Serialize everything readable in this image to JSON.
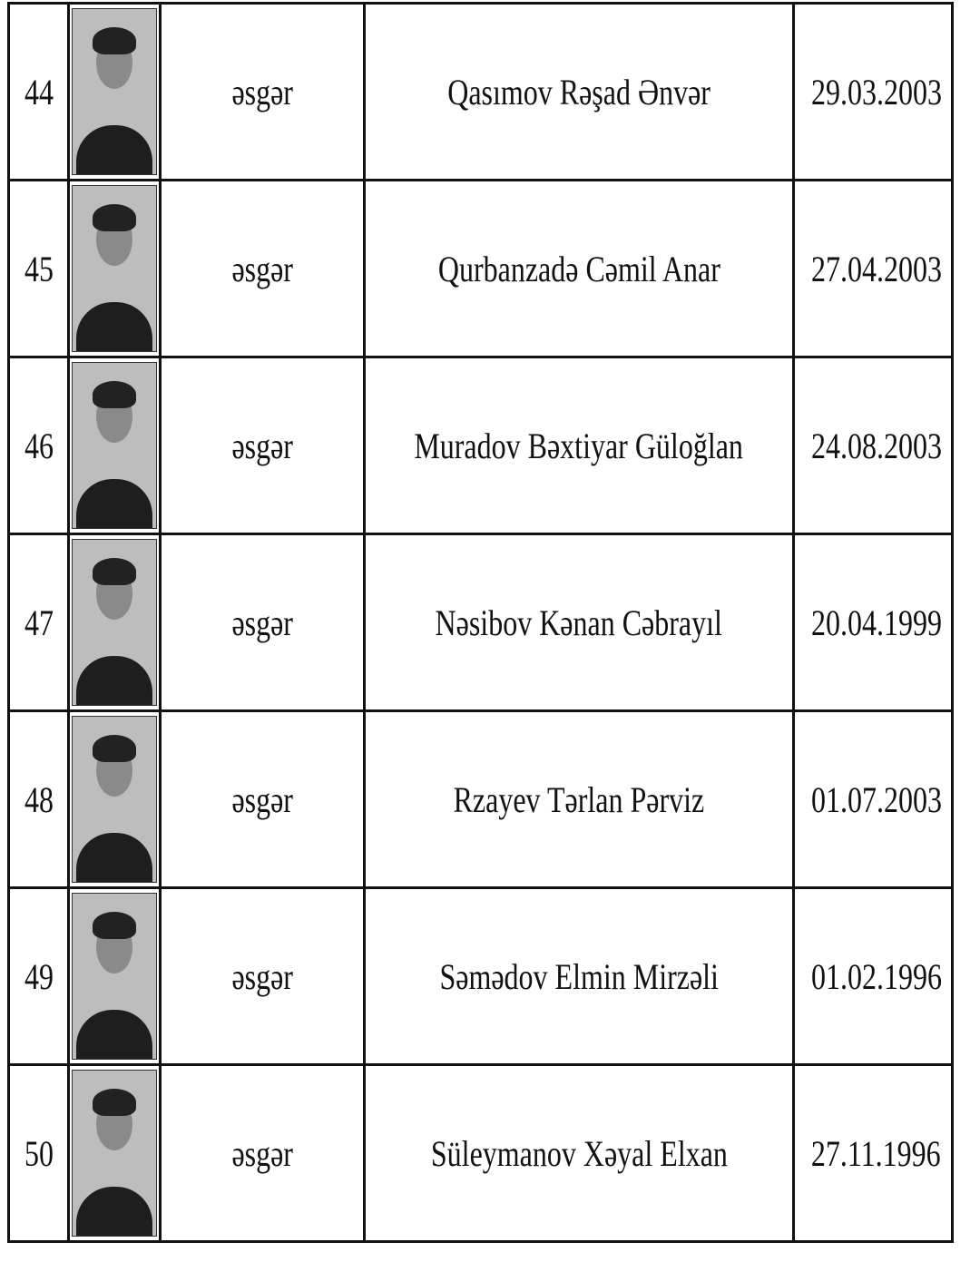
{
  "rows": [
    {
      "no": "44",
      "rank": "əsgər",
      "name": "Qasımov Rəşad Ənvər",
      "dob": "29.03.2003"
    },
    {
      "no": "45",
      "rank": "əsgər",
      "name": "Qurbanzadə Cəmil Anar",
      "dob": "27.04.2003"
    },
    {
      "no": "46",
      "rank": "əsgər",
      "name": "Muradov Bəxtiyar Güloğlan",
      "dob": "24.08.2003"
    },
    {
      "no": "47",
      "rank": "əsgər",
      "name": "Nəsibov Kənan Cəbrayıl",
      "dob": "20.04.1999"
    },
    {
      "no": "48",
      "rank": "əsgər",
      "name": "Rzayev Tərlan Pərviz",
      "dob": "01.07.2003"
    },
    {
      "no": "49",
      "rank": "əsgər",
      "name": "Səmədov Elmin Mirzəli",
      "dob": "01.02.1996"
    },
    {
      "no": "50",
      "rank": "əsgər",
      "name": "Süleymanov Xəyal Elxan",
      "dob": "27.11.1996"
    }
  ]
}
